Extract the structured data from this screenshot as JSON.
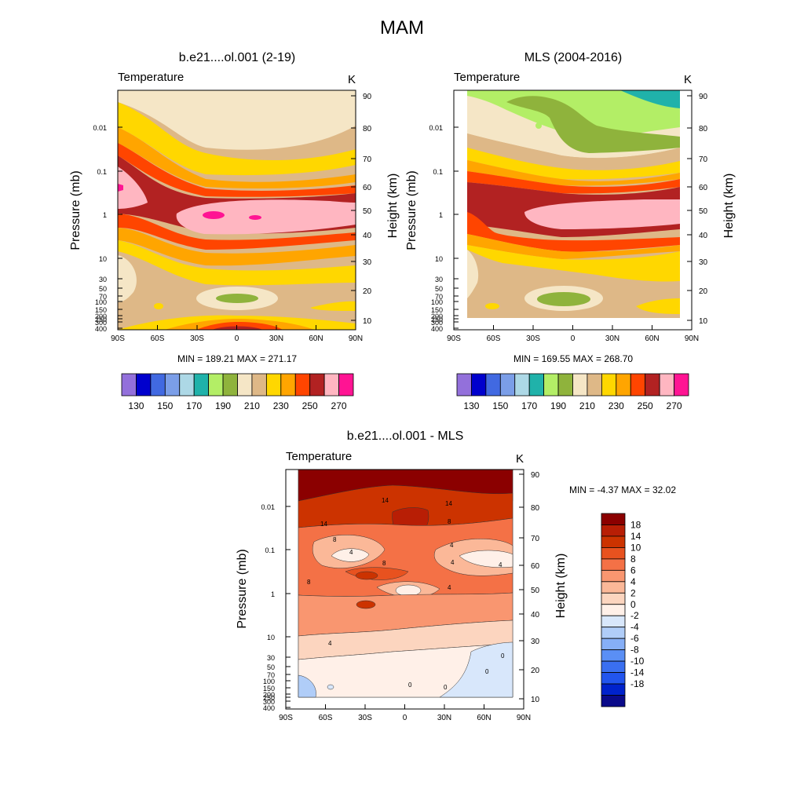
{
  "figure": {
    "title": "MAM"
  },
  "colors": {
    "abs_scale": [
      "#9370db",
      "#0000cd",
      "#4169e1",
      "#7b9ee8",
      "#add8e6",
      "#20b2aa",
      "#b3ee66",
      "#8fb33c",
      "#f5e6c6",
      "#deb887",
      "#ffd700",
      "#ffa500",
      "#ff4500",
      "#b22222",
      "#ffb6c1",
      "#ff1493"
    ],
    "diff_scale": [
      "#0a0a8a",
      "#0022cc",
      "#2255ee",
      "#3a6ff0",
      "#5a8ff5",
      "#86aff7",
      "#b0cdf8",
      "#d8e7fb",
      "#fff0e8",
      "#fcd5bf",
      "#fbb898",
      "#f99670",
      "#f47146",
      "#e8521f",
      "#cc3300",
      "#b81e05",
      "#8b0000"
    ]
  },
  "chart_data": [
    {
      "type": "heatmap",
      "title": "b.e21....ol.001 (2-19)",
      "variable": "Temperature",
      "units": "K",
      "ylabel": "Pressure (mb)",
      "y2label": "Height (km)",
      "x_ticks": [
        "90S",
        "60S",
        "30S",
        "0",
        "30N",
        "60N",
        "90N"
      ],
      "p_ticks": [
        "0.01",
        "0.1",
        "1",
        "10",
        "30",
        "50",
        "70",
        "100",
        "150",
        "200",
        "250",
        "300",
        "400"
      ],
      "height_ticks": [
        "10",
        "20",
        "30",
        "40",
        "50",
        "60",
        "70",
        "80",
        "90"
      ],
      "min": "189.21",
      "max": "271.17",
      "stats_text": "MIN = 189.21  MAX = 271.17",
      "colorbar_labels": [
        "130",
        "150",
        "170",
        "190",
        "210",
        "230",
        "250",
        "270"
      ],
      "levels_K": [
        130,
        140,
        150,
        160,
        170,
        180,
        190,
        200,
        210,
        220,
        230,
        240,
        250,
        260,
        270,
        280
      ]
    },
    {
      "type": "heatmap",
      "title": "MLS (2004-2016)",
      "variable": "Temperature",
      "units": "K",
      "ylabel": "Pressure (mb)",
      "y2label": "Height (km)",
      "x_ticks": [
        "90S",
        "60S",
        "30S",
        "0",
        "30N",
        "60N",
        "90N"
      ],
      "p_ticks": [
        "0.01",
        "0.1",
        "1",
        "10",
        "30",
        "50",
        "70",
        "100",
        "150",
        "200",
        "250",
        "300",
        "400"
      ],
      "height_ticks": [
        "10",
        "20",
        "30",
        "40",
        "50",
        "60",
        "70",
        "80",
        "90"
      ],
      "min": "169.55",
      "max": "268.70",
      "stats_text": "MIN = 169.55  MAX = 268.70",
      "colorbar_labels": [
        "130",
        "150",
        "170",
        "190",
        "210",
        "230",
        "250",
        "270"
      ]
    },
    {
      "type": "heatmap",
      "title": "b.e21....ol.001 - MLS",
      "variable": "Temperature",
      "units": "K",
      "ylabel": "Pressure (mb)",
      "y2label": "Height (km)",
      "x_ticks": [
        "90S",
        "60S",
        "30S",
        "0",
        "30N",
        "60N",
        "90N"
      ],
      "p_ticks": [
        "0.01",
        "0.1",
        "1",
        "10",
        "30",
        "50",
        "70",
        "100",
        "150",
        "200",
        "250",
        "300",
        "400"
      ],
      "height_ticks": [
        "10",
        "20",
        "30",
        "40",
        "50",
        "60",
        "70",
        "80",
        "90"
      ],
      "min": "-4.37",
      "max": "32.02",
      "stats_text": "MIN =  -4.37  MAX =  32.02",
      "colorbar_labels": [
        "18",
        "14",
        "10",
        "8",
        "6",
        "4",
        "2",
        "0",
        "-2",
        "-4",
        "-6",
        "-8",
        "-10",
        "-14",
        "-18"
      ],
      "contour_labels": [
        "14",
        "14",
        "14",
        "8",
        "8",
        "4",
        "4",
        "8",
        "8",
        "4",
        "4",
        "4",
        "4",
        "0",
        "0",
        "0",
        "0"
      ]
    }
  ]
}
